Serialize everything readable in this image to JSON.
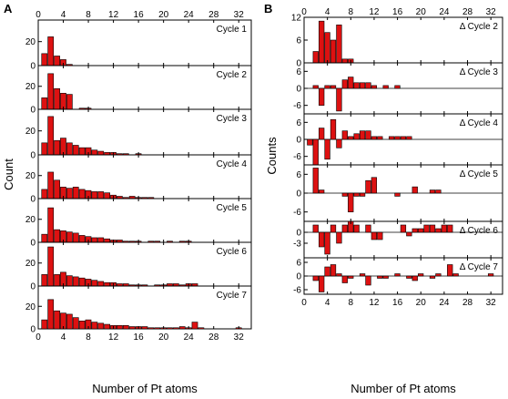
{
  "figure": {
    "panel_a_letter": "A",
    "panel_b_letter": "B"
  },
  "chart_data": [
    {
      "type": "bar",
      "panel": "A",
      "xlabel": "Number of Pt atoms",
      "ylabel": "Count",
      "xlim": [
        0,
        34
      ],
      "x_ticks": [
        0,
        4,
        8,
        12,
        16,
        20,
        24,
        28,
        32
      ],
      "bar_color": "#dd1111",
      "subplots": [
        {
          "label": "Cycle 1",
          "ylim": [
            0,
            38
          ],
          "y_ticks": [
            0,
            20
          ],
          "x": [
            1,
            2,
            3,
            4,
            5
          ],
          "values": [
            10,
            24,
            8,
            5,
            1
          ]
        },
        {
          "label": "Cycle 2",
          "ylim": [
            0,
            38
          ],
          "y_ticks": [
            0,
            20
          ],
          "x": [
            1,
            2,
            3,
            4,
            5,
            6,
            7,
            8
          ],
          "values": [
            10,
            31,
            18,
            14,
            13,
            0,
            1,
            1
          ]
        },
        {
          "label": "Cycle 3",
          "ylim": [
            0,
            38
          ],
          "y_ticks": [
            0,
            20
          ],
          "x": [
            1,
            2,
            3,
            4,
            5,
            6,
            7,
            8,
            9,
            10,
            11,
            12,
            13,
            14,
            15,
            16
          ],
          "values": [
            10,
            32,
            12,
            14,
            10,
            8,
            6,
            6,
            4,
            3,
            2,
            2,
            1,
            1,
            0,
            1
          ]
        },
        {
          "label": "Cycle 4",
          "ylim": [
            0,
            38
          ],
          "y_ticks": [
            0,
            20
          ],
          "x": [
            1,
            2,
            3,
            4,
            5,
            6,
            7,
            8,
            9,
            10,
            11,
            12,
            13,
            14,
            15,
            16,
            17,
            18
          ],
          "values": [
            8,
            23,
            16,
            10,
            9,
            10,
            8,
            7,
            6,
            6,
            5,
            3,
            2,
            1,
            2,
            1,
            1,
            1
          ]
        },
        {
          "label": "Cycle 5",
          "ylim": [
            0,
            38
          ],
          "y_ticks": [
            0,
            20
          ],
          "x": [
            1,
            2,
            3,
            4,
            5,
            6,
            7,
            8,
            9,
            10,
            11,
            12,
            13,
            14,
            15,
            16,
            17,
            18,
            19,
            20,
            21,
            22,
            23,
            24
          ],
          "values": [
            7,
            30,
            11,
            10,
            9,
            8,
            6,
            5,
            4,
            4,
            3,
            2,
            2,
            1,
            1,
            1,
            0,
            1,
            1,
            0,
            1,
            0,
            1,
            1
          ]
        },
        {
          "label": "Cycle 6",
          "ylim": [
            0,
            38
          ],
          "y_ticks": [
            0,
            20
          ],
          "x": [
            1,
            2,
            3,
            4,
            5,
            6,
            7,
            8,
            9,
            10,
            11,
            12,
            13,
            14,
            15,
            16,
            17,
            18,
            19,
            20,
            21,
            22,
            23,
            24,
            25
          ],
          "values": [
            10,
            34,
            10,
            12,
            9,
            8,
            7,
            6,
            5,
            4,
            3,
            3,
            2,
            2,
            1,
            1,
            1,
            0,
            1,
            1,
            2,
            2,
            1,
            2,
            2
          ]
        },
        {
          "label": "Cycle 7",
          "ylim": [
            0,
            38
          ],
          "y_ticks": [
            0,
            20
          ],
          "x": [
            1,
            2,
            3,
            4,
            5,
            6,
            7,
            8,
            9,
            10,
            11,
            12,
            13,
            14,
            15,
            16,
            17,
            18,
            19,
            20,
            21,
            22,
            23,
            24,
            25,
            26,
            32
          ],
          "values": [
            8,
            26,
            16,
            14,
            13,
            10,
            7,
            8,
            6,
            5,
            4,
            3,
            3,
            3,
            2,
            2,
            2,
            1,
            1,
            1,
            1,
            1,
            2,
            1,
            6,
            1,
            1
          ]
        }
      ]
    },
    {
      "type": "bar",
      "panel": "B",
      "xlabel": "Number of Pt atoms",
      "ylabel": "Counts",
      "xlim": [
        0,
        34
      ],
      "x_ticks": [
        0,
        4,
        8,
        12,
        16,
        20,
        24,
        28,
        32
      ],
      "bar_color": "#dd1111",
      "subplots": [
        {
          "label": "Δ Cycle 2",
          "ylim": [
            0,
            12
          ],
          "y_ticks": [
            0,
            6,
            12
          ],
          "x": [
            2,
            3,
            4,
            5,
            6,
            7,
            8
          ],
          "values": [
            3,
            11,
            8,
            6,
            10,
            1,
            1
          ]
        },
        {
          "label": "Δ Cycle 3",
          "ylim": [
            -9,
            9
          ],
          "y_ticks": [
            -6,
            0,
            6
          ],
          "x": [
            2,
            3,
            4,
            5,
            6,
            7,
            8,
            9,
            10,
            11,
            12,
            14,
            16
          ],
          "values": [
            1,
            -6,
            1,
            1,
            -8,
            3,
            4,
            2,
            2,
            2,
            1,
            1,
            1
          ]
        },
        {
          "label": "Δ Cycle 4",
          "ylim": [
            -9,
            9
          ],
          "y_ticks": [
            -6,
            0,
            6
          ],
          "x": [
            1,
            2,
            3,
            4,
            5,
            6,
            7,
            8,
            9,
            10,
            11,
            12,
            13,
            14,
            15,
            16,
            17,
            18
          ],
          "values": [
            -2,
            -9,
            4,
            -7,
            7,
            -3,
            3,
            1,
            2,
            3,
            3,
            1,
            1,
            0,
            1,
            1,
            1,
            1
          ]
        },
        {
          "label": "Δ Cycle 5",
          "ylim": [
            -9,
            9
          ],
          "y_ticks": [
            -6,
            0,
            6
          ],
          "x": [
            2,
            3,
            7,
            8,
            9,
            10,
            11,
            12,
            16,
            19,
            22,
            23
          ],
          "values": [
            8,
            1,
            -1,
            -6,
            -1,
            -1,
            4,
            5,
            -1,
            2,
            1,
            1
          ]
        },
        {
          "label": "Δ Cycle 6",
          "ylim": [
            -7,
            3
          ],
          "y_ticks": [
            -3,
            0
          ],
          "x": [
            2,
            3,
            4,
            5,
            6,
            7,
            8,
            9,
            11,
            12,
            13,
            17,
            18,
            19,
            20,
            21,
            22,
            23,
            24,
            25
          ],
          "values": [
            2,
            -4,
            -6,
            2,
            -3,
            2,
            3,
            2,
            2,
            -2,
            -2,
            2,
            -1,
            1,
            1,
            2,
            2,
            1,
            2,
            2
          ]
        },
        {
          "label": "Δ Cycle 7",
          "ylim": [
            -8,
            8
          ],
          "y_ticks": [
            -6,
            0,
            6
          ],
          "x": [
            2,
            3,
            4,
            5,
            6,
            7,
            8,
            10,
            11,
            13,
            14,
            16,
            18,
            19,
            20,
            22,
            23,
            25,
            26,
            32
          ],
          "values": [
            -2,
            -7,
            4,
            5,
            1,
            -3,
            -1,
            1,
            -4,
            -1,
            -1,
            1,
            -1,
            -2,
            1,
            -1,
            1,
            5,
            1,
            1
          ]
        }
      ]
    }
  ]
}
